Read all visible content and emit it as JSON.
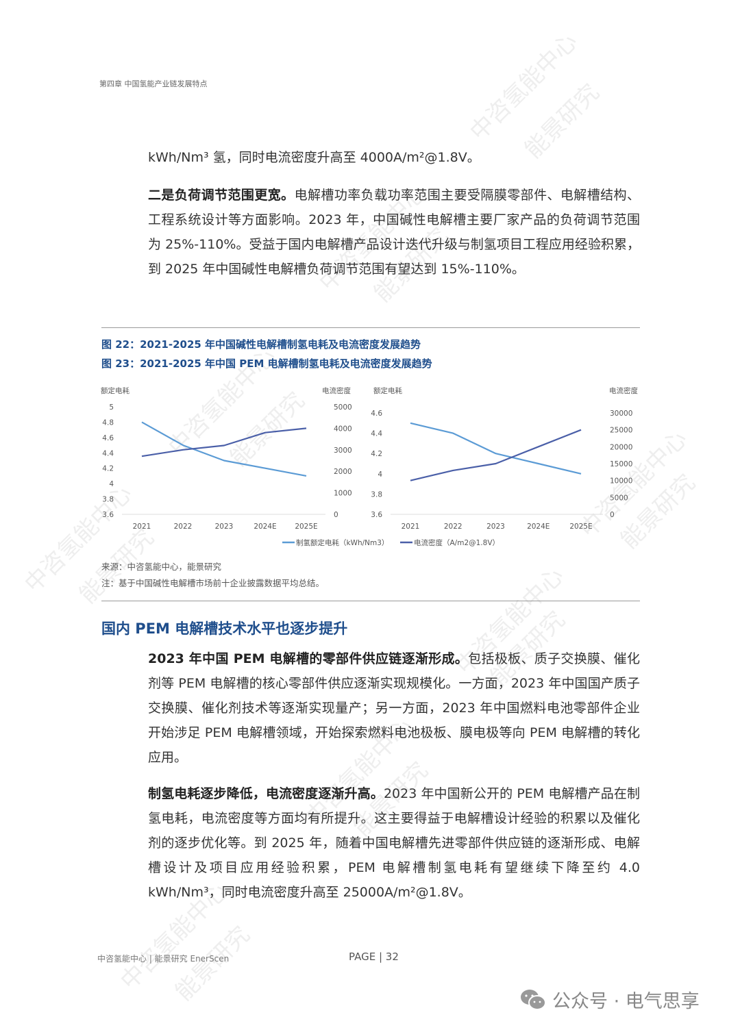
{
  "header": {
    "chapter": "第四章 中国氢能产业链发展特点"
  },
  "paragraphs": [
    {
      "bold": "",
      "text": "kWh/Nm³ 氢，同时电流密度升高至 4000A/m²@1.8V。"
    },
    {
      "bold": "二是负荷调节范围更宽。",
      "text": "电解槽功率负载功率范围主要受隔膜零部件、电解槽结构、工程系统设计等方面影响。2023 年，中国碱性电解槽主要厂家产品的负荷调节范围为 25%-110%。受益于国内电解槽产品设计迭代升级与制氢项目工程应用经验积累，到 2025 年中国碱性电解槽负荷调节范围有望达到 15%-110%。"
    }
  ],
  "figures": {
    "fig22": "图 22：2021-2025 年中国碱性电解槽制氢电耗及电流密度发展趋势",
    "fig23": "图 23：2021-2025 年中国 PEM 电解槽制氢电耗及电流密度发展趋势",
    "source": "来源：中咨氢能中心，能景研究",
    "note": "注：基于中国碱性电解槽市场前十企业披露数据平均总结。"
  },
  "chart_data": [
    {
      "type": "line",
      "categories": [
        "2021",
        "2022",
        "2023",
        "2024E",
        "2025E"
      ],
      "ylabel": "额定电耗",
      "y2label": "电流密度",
      "ylim": [
        3.6,
        5
      ],
      "yticks": [
        "5",
        "4.8",
        "4.6",
        "4.4",
        "4.2",
        "4",
        "3.8",
        "3.6"
      ],
      "y2lim": [
        0,
        5000
      ],
      "y2ticks": [
        "5000",
        "4000",
        "3000",
        "2000",
        "1000",
        "0"
      ],
      "grid": false,
      "series": [
        {
          "name": "制氢额定电耗（kWh/Nm3）",
          "axis": "left",
          "color": "#5b9bd5",
          "values": [
            4.8,
            4.5,
            4.3,
            4.2,
            4.1
          ]
        },
        {
          "name": "电流密度（A/m2@1.8V）",
          "axis": "right",
          "color": "#4a5fa8",
          "values": [
            2700,
            3000,
            3200,
            3800,
            4000
          ]
        }
      ]
    },
    {
      "type": "line",
      "categories": [
        "2021",
        "2022",
        "2023",
        "2024E",
        "2025E"
      ],
      "ylabel": "额定电耗",
      "y2label": "电流密度",
      "ylim": [
        3.6,
        4.6
      ],
      "yticks": [
        "4.6",
        "4.4",
        "4.2",
        "4",
        "3.8",
        "3.6"
      ],
      "y2lim": [
        0,
        30000
      ],
      "y2ticks": [
        "30000",
        "25000",
        "20000",
        "15000",
        "10000",
        "5000",
        "0"
      ],
      "grid": false,
      "series": [
        {
          "name": "制氢额定电耗（kWh/Nm3）",
          "axis": "left",
          "color": "#5b9bd5",
          "values": [
            4.5,
            4.4,
            4.2,
            4.1,
            4.0
          ]
        },
        {
          "name": "电流密度（A/m2@1.8V）",
          "axis": "right",
          "color": "#4a5fa8",
          "values": [
            10000,
            13000,
            15000,
            20000,
            25000
          ]
        }
      ],
      "legend": "bottom"
    }
  ],
  "section": {
    "title": "国内 PEM 电解槽技术水平也逐步提升"
  },
  "paragraphs2": [
    {
      "bold": "2023 年中国 PEM 电解槽的零部件供应链逐渐形成。",
      "text": "包括极板、质子交换膜、催化剂等 PEM 电解槽的核心零部件供应逐渐实现规模化。一方面，2023 年中国国产质子交换膜、催化剂技术等逐渐实现量产；另一方面，2023 年中国燃料电池零部件企业开始涉足 PEM 电解槽领域，开始探索燃料电池极板、膜电极等向 PEM 电解槽的转化应用。"
    },
    {
      "bold": "制氢电耗逐步降低，电流密度逐渐升高。",
      "text": "2023 年中国新公开的 PEM 电解槽产品在制氢电耗，电流密度等方面均有所提升。这主要得益于电解槽设计经验的积累以及催化剂的逐步优化等。到 2025 年，随着中国电解槽先进零部件供应链的逐渐形成、电解槽设计及项目应用经验积累，PEM 电解槽制氢电耗有望继续下降至约 4.0 kWh/Nm³，同时电流密度升高至 25000A/m²@1.8V。"
    }
  ],
  "footer": {
    "org": "中咨氢能中心 | 能景研究 EnerScen",
    "page": "PAGE | 32",
    "wechat": "公众号 · 电气思享"
  },
  "watermark": {
    "a": "中咨氢能中心",
    "b": "能景研究"
  }
}
